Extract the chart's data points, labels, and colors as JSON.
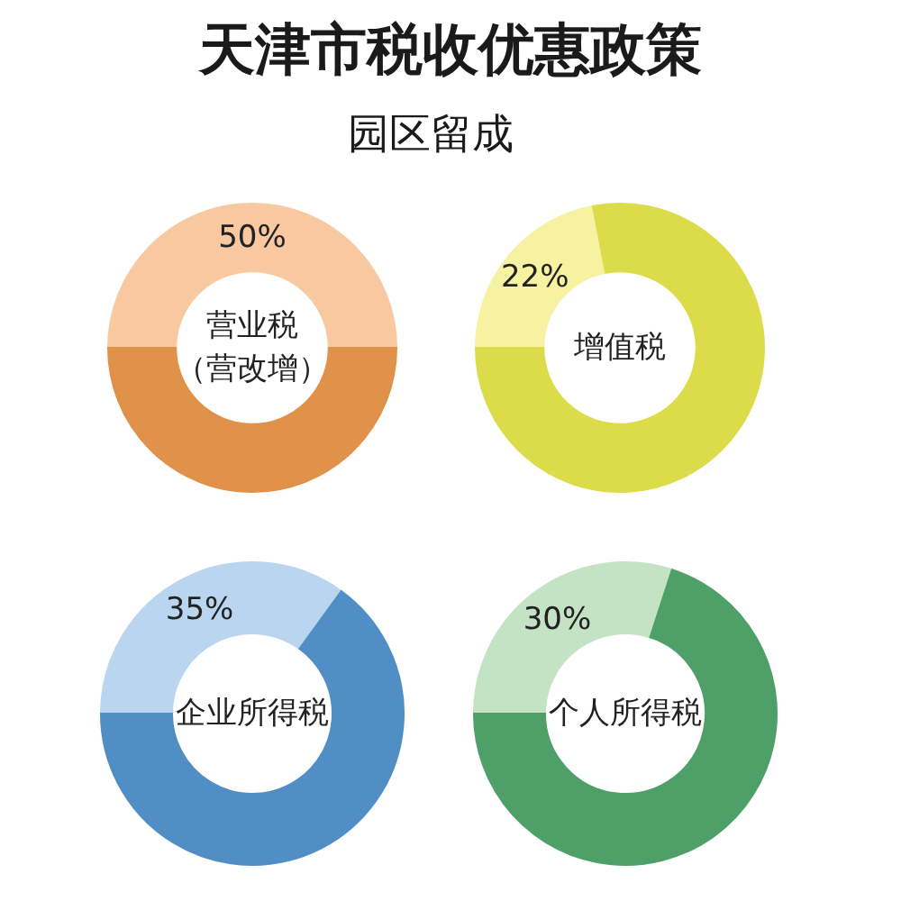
{
  "chart_data": [
    {
      "type": "donut",
      "title": "天津市税收优惠政策",
      "subtitle": "园区留成",
      "annotations": [
        "营业税",
        "（营改增）"
      ],
      "categories": [
        null,
        null
      ],
      "values": [
        50,
        50
      ],
      "colors": [
        "#f8c9a0",
        "#e0914a"
      ],
      "value_labels": [
        "50%",
        null
      ]
    },
    {
      "type": "donut",
      "annotations": [
        "增值税"
      ],
      "categories": [
        null,
        null
      ],
      "values": [
        22,
        78
      ],
      "colors": [
        "#f6f2a2",
        "#dcdc4a"
      ],
      "value_labels": [
        "22%",
        null
      ]
    },
    {
      "type": "donut",
      "annotations": [
        "企业所得税"
      ],
      "categories": [
        null,
        null
      ],
      "values": [
        35,
        65
      ],
      "colors": [
        "#bad5ef",
        "#508ec5"
      ],
      "value_labels": [
        "35%",
        null
      ]
    },
    {
      "type": "donut",
      "annotations": [
        "个人所得税"
      ],
      "categories": [
        null,
        null
      ],
      "values": [
        30,
        70
      ],
      "colors": [
        "#c4e2c4",
        "#4f9f69"
      ],
      "value_labels": [
        "30%",
        null
      ]
    }
  ]
}
